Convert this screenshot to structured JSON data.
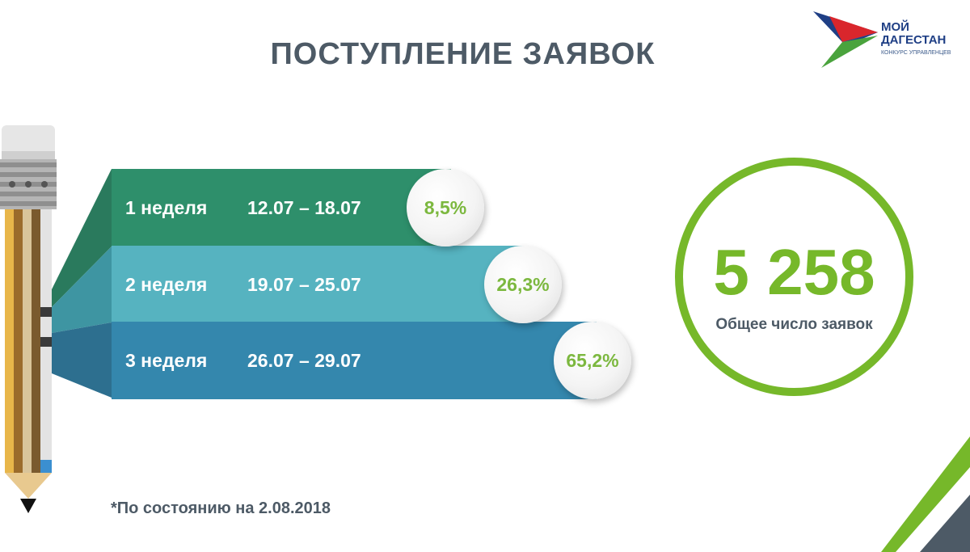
{
  "page": {
    "title": "ПОСТУПЛЕНИЕ ЗАЯВОК"
  },
  "logo": {
    "line1": "МОЙ",
    "line2": "ДАГЕСТАН",
    "subtitle": "КОНКУРС УПРАВЛЕНЦЕВ"
  },
  "weeks": [
    {
      "label": "1 неделя",
      "dates": "12.07 – 18.07",
      "share": "8,5%"
    },
    {
      "label": "2 неделя",
      "dates": "19.07 – 25.07",
      "share": "26,3%"
    },
    {
      "label": "3 неделя",
      "dates": "26.07 – 29.07",
      "share": "65,2%"
    }
  ],
  "total": {
    "value": "5 258",
    "label": "Общее число заявок"
  },
  "footnote": "*По состоянию на 2.08.2018",
  "colors": {
    "title": "#4d5a66",
    "week1": "#2e8f6b",
    "week2": "#56b3c0",
    "week3": "#3487ad",
    "accent_green": "#76b82a"
  },
  "icons": [
    "pencil-icon",
    "logo-arrow-icon"
  ]
}
